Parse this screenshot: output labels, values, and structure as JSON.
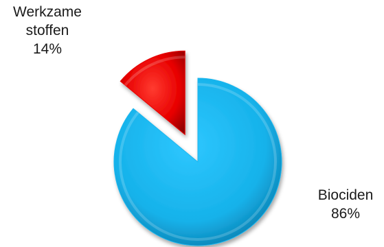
{
  "chart_data": {
    "type": "pie",
    "title": "",
    "slices": [
      {
        "label_lines": [
          "Werkzame",
          "stoffen"
        ],
        "percent_label": "14%",
        "value": 14,
        "color": "#e80000",
        "exploded": true
      },
      {
        "label_lines": [
          "Biociden"
        ],
        "percent_label": "86%",
        "value": 86,
        "color": "#1cb6ee",
        "exploded": false
      }
    ],
    "start_angle_deg": 0,
    "direction": "counterclockwise",
    "legend": "none",
    "style": "3d-bevel"
  }
}
